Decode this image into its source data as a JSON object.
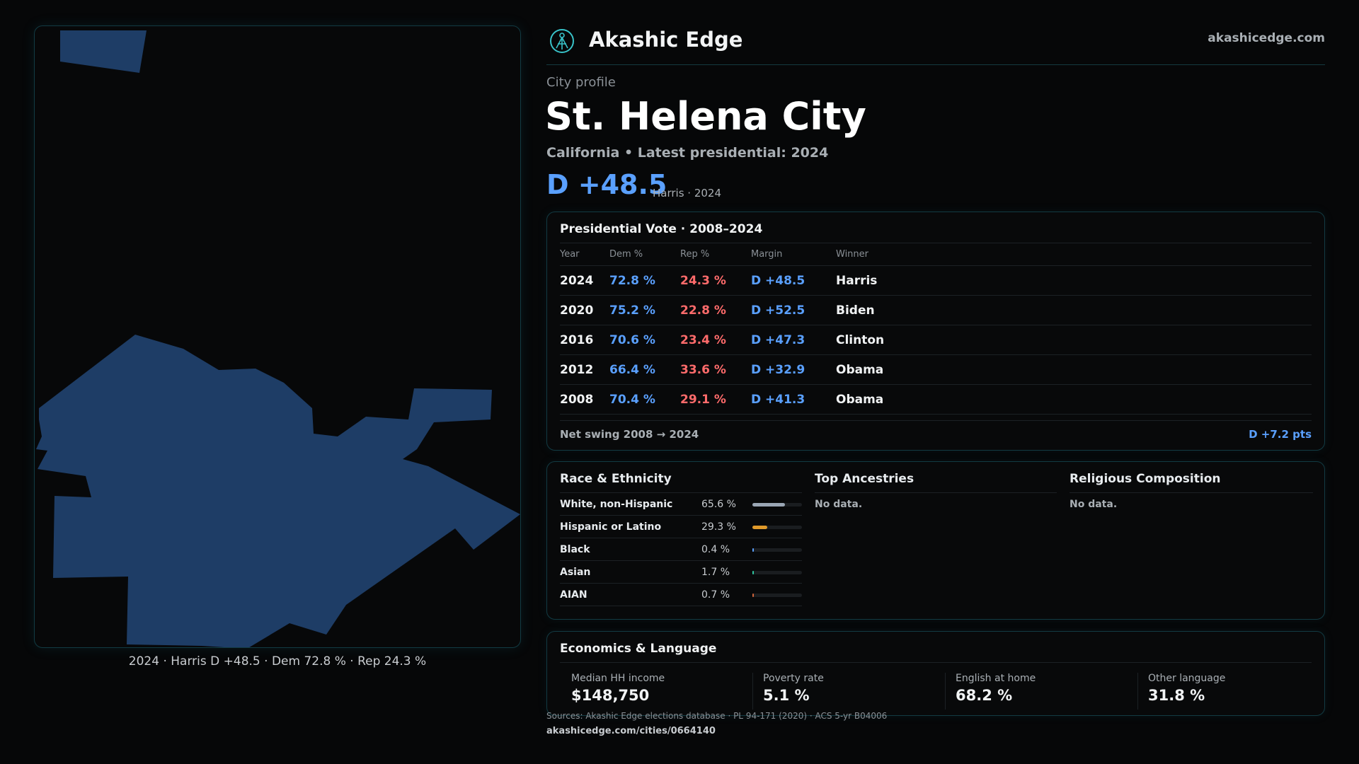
{
  "brand": {
    "name": "Akashic Edge",
    "url": "akashicedge.com"
  },
  "profile": {
    "eyebrow": "City profile",
    "title": "St. Helena City",
    "subtitle": "California • Latest presidential: 2024",
    "margin": "D +48.5",
    "margin_note": "Harris · 2024"
  },
  "map": {
    "caption": "2024 · Harris D +48.5 · Dem 72.8 % · Rep 24.3 %",
    "fill_color": "#1e3d66"
  },
  "presidential": {
    "title": "Presidential Vote · 2008–2024",
    "headers": [
      "Year",
      "Dem %",
      "Rep %",
      "Margin",
      "Winner"
    ],
    "rows": [
      {
        "year": "2024",
        "dem": "72.8 %",
        "rep": "24.3 %",
        "margin": "D +48.5",
        "winner": "Harris"
      },
      {
        "year": "2020",
        "dem": "75.2 %",
        "rep": "22.8 %",
        "margin": "D +52.5",
        "winner": "Biden"
      },
      {
        "year": "2016",
        "dem": "70.6 %",
        "rep": "23.4 %",
        "margin": "D +47.3",
        "winner": "Clinton"
      },
      {
        "year": "2012",
        "dem": "66.4 %",
        "rep": "33.6 %",
        "margin": "D +32.9",
        "winner": "Obama"
      },
      {
        "year": "2008",
        "dem": "70.4 %",
        "rep": "29.1 %",
        "margin": "D +41.3",
        "winner": "Obama"
      }
    ],
    "swing_label": "Net swing 2008 → 2024",
    "swing_value": "D +7.2 pts"
  },
  "race": {
    "title": "Race & Ethnicity",
    "rows": [
      {
        "name": "White, non-Hispanic",
        "pct": "65.6 %",
        "value": 65.6,
        "color": "#9aa6b4"
      },
      {
        "name": "Hispanic or Latino",
        "pct": "29.3 %",
        "value": 29.3,
        "color": "#e09a2a"
      },
      {
        "name": "Black",
        "pct": "0.4 %",
        "value": 0.4,
        "color": "#5aa0ff"
      },
      {
        "name": "Asian",
        "pct": "1.7 %",
        "value": 1.7,
        "color": "#2fc7a0"
      },
      {
        "name": "AIAN",
        "pct": "0.7 %",
        "value": 0.7,
        "color": "#d0643a"
      }
    ]
  },
  "ancestries": {
    "title": "Top Ancestries",
    "empty": "No data."
  },
  "religion": {
    "title": "Religious Composition",
    "empty": "No data."
  },
  "economics": {
    "title": "Economics & Language",
    "stats": [
      {
        "label": "Median HH income",
        "value": "$148,750"
      },
      {
        "label": "Poverty rate",
        "value": "5.1 %"
      },
      {
        "label": "English at home",
        "value": "68.2 %"
      },
      {
        "label": "Other language",
        "value": "31.8 %"
      }
    ]
  },
  "footer": {
    "sources": "Sources: Akashic Edge elections database · PL 94-171 (2020) · ACS 5-yr B04006",
    "url": "akashicedge.com/cities/0664140"
  }
}
